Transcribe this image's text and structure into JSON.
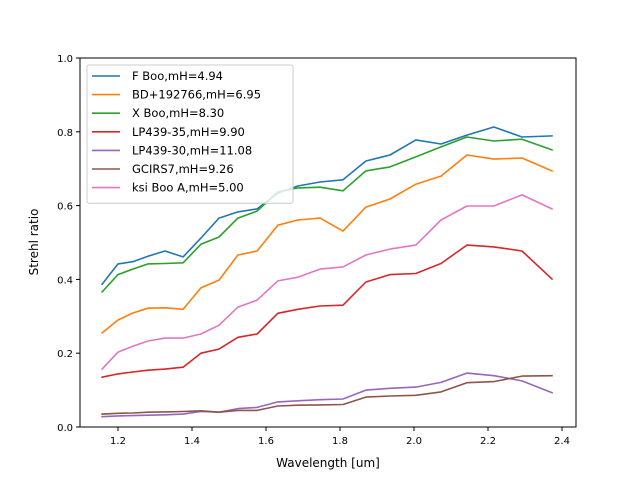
{
  "chart_data": {
    "type": "line",
    "title": "",
    "xlabel": "Wavelength [um]",
    "ylabel": "Strehl ratio",
    "xlim": [
      1.1,
      2.43
    ],
    "ylim": [
      0.0,
      1.0
    ],
    "grid": false,
    "legend_position": "top-left",
    "xticks": [
      1.2,
      1.4,
      1.6,
      1.8,
      2.0,
      2.2,
      2.4
    ],
    "xtick_labels": [
      "1.2",
      "1.4",
      "1.6",
      "1.8",
      "2.0",
      "2.2",
      "2.4"
    ],
    "yticks": [
      0.0,
      0.2,
      0.4,
      0.6,
      0.8,
      1.0
    ],
    "ytick_labels": [
      "0.0",
      "0.2",
      "0.4",
      "0.6",
      "0.8",
      "1.0"
    ],
    "x": [
      1.157,
      1.2,
      1.24,
      1.281,
      1.327,
      1.376,
      1.424,
      1.473,
      1.524,
      1.576,
      1.632,
      1.686,
      1.746,
      1.808,
      1.87,
      1.935,
      2.005,
      2.073,
      2.143,
      2.216,
      2.292,
      2.373
    ],
    "series": [
      {
        "name": "F Boo,mH=4.94",
        "color": "#1f77b4",
        "values": [
          0.387,
          0.442,
          0.448,
          0.463,
          0.477,
          0.461,
          0.512,
          0.566,
          0.583,
          0.591,
          0.634,
          0.653,
          0.664,
          0.67,
          0.721,
          0.737,
          0.778,
          0.767,
          0.791,
          0.813,
          0.786,
          0.789
        ]
      },
      {
        "name": "BD+192766,mH=6.95",
        "color": "#ff7f0e",
        "values": [
          0.255,
          0.29,
          0.309,
          0.322,
          0.323,
          0.319,
          0.377,
          0.398,
          0.466,
          0.477,
          0.547,
          0.561,
          0.566,
          0.531,
          0.596,
          0.618,
          0.658,
          0.68,
          0.737,
          0.726,
          0.729,
          0.694
        ]
      },
      {
        "name": "X Boo,mH=8.30",
        "color": "#2ca02c",
        "values": [
          0.366,
          0.413,
          0.428,
          0.442,
          0.443,
          0.445,
          0.495,
          0.515,
          0.566,
          0.585,
          0.637,
          0.648,
          0.65,
          0.64,
          0.694,
          0.705,
          0.732,
          0.759,
          0.786,
          0.775,
          0.78,
          0.751
        ]
      },
      {
        "name": "LP439-35,mH=9.90",
        "color": "#d62728",
        "values": [
          0.135,
          0.144,
          0.149,
          0.154,
          0.157,
          0.162,
          0.2,
          0.211,
          0.243,
          0.252,
          0.308,
          0.319,
          0.328,
          0.33,
          0.393,
          0.413,
          0.416,
          0.443,
          0.493,
          0.488,
          0.477,
          0.401
        ]
      },
      {
        "name": "LP439-30,mH=11.08",
        "color": "#9467bd",
        "values": [
          0.028,
          0.03,
          0.031,
          0.032,
          0.033,
          0.035,
          0.042,
          0.04,
          0.05,
          0.053,
          0.068,
          0.071,
          0.074,
          0.076,
          0.1,
          0.105,
          0.108,
          0.121,
          0.146,
          0.139,
          0.125,
          0.093
        ]
      },
      {
        "name": "GCIRS7,mH=9.26",
        "color": "#8c564b",
        "values": [
          0.035,
          0.037,
          0.038,
          0.04,
          0.041,
          0.042,
          0.044,
          0.04,
          0.045,
          0.045,
          0.057,
          0.059,
          0.06,
          0.061,
          0.081,
          0.084,
          0.086,
          0.095,
          0.12,
          0.123,
          0.138,
          0.139
        ]
      },
      {
        "name": "ksi Boo A,mH=5.00",
        "color": "#e377c2",
        "values": [
          0.157,
          0.203,
          0.219,
          0.233,
          0.241,
          0.241,
          0.252,
          0.276,
          0.325,
          0.344,
          0.396,
          0.406,
          0.428,
          0.434,
          0.466,
          0.482,
          0.493,
          0.561,
          0.599,
          0.599,
          0.629,
          0.591
        ]
      }
    ]
  }
}
